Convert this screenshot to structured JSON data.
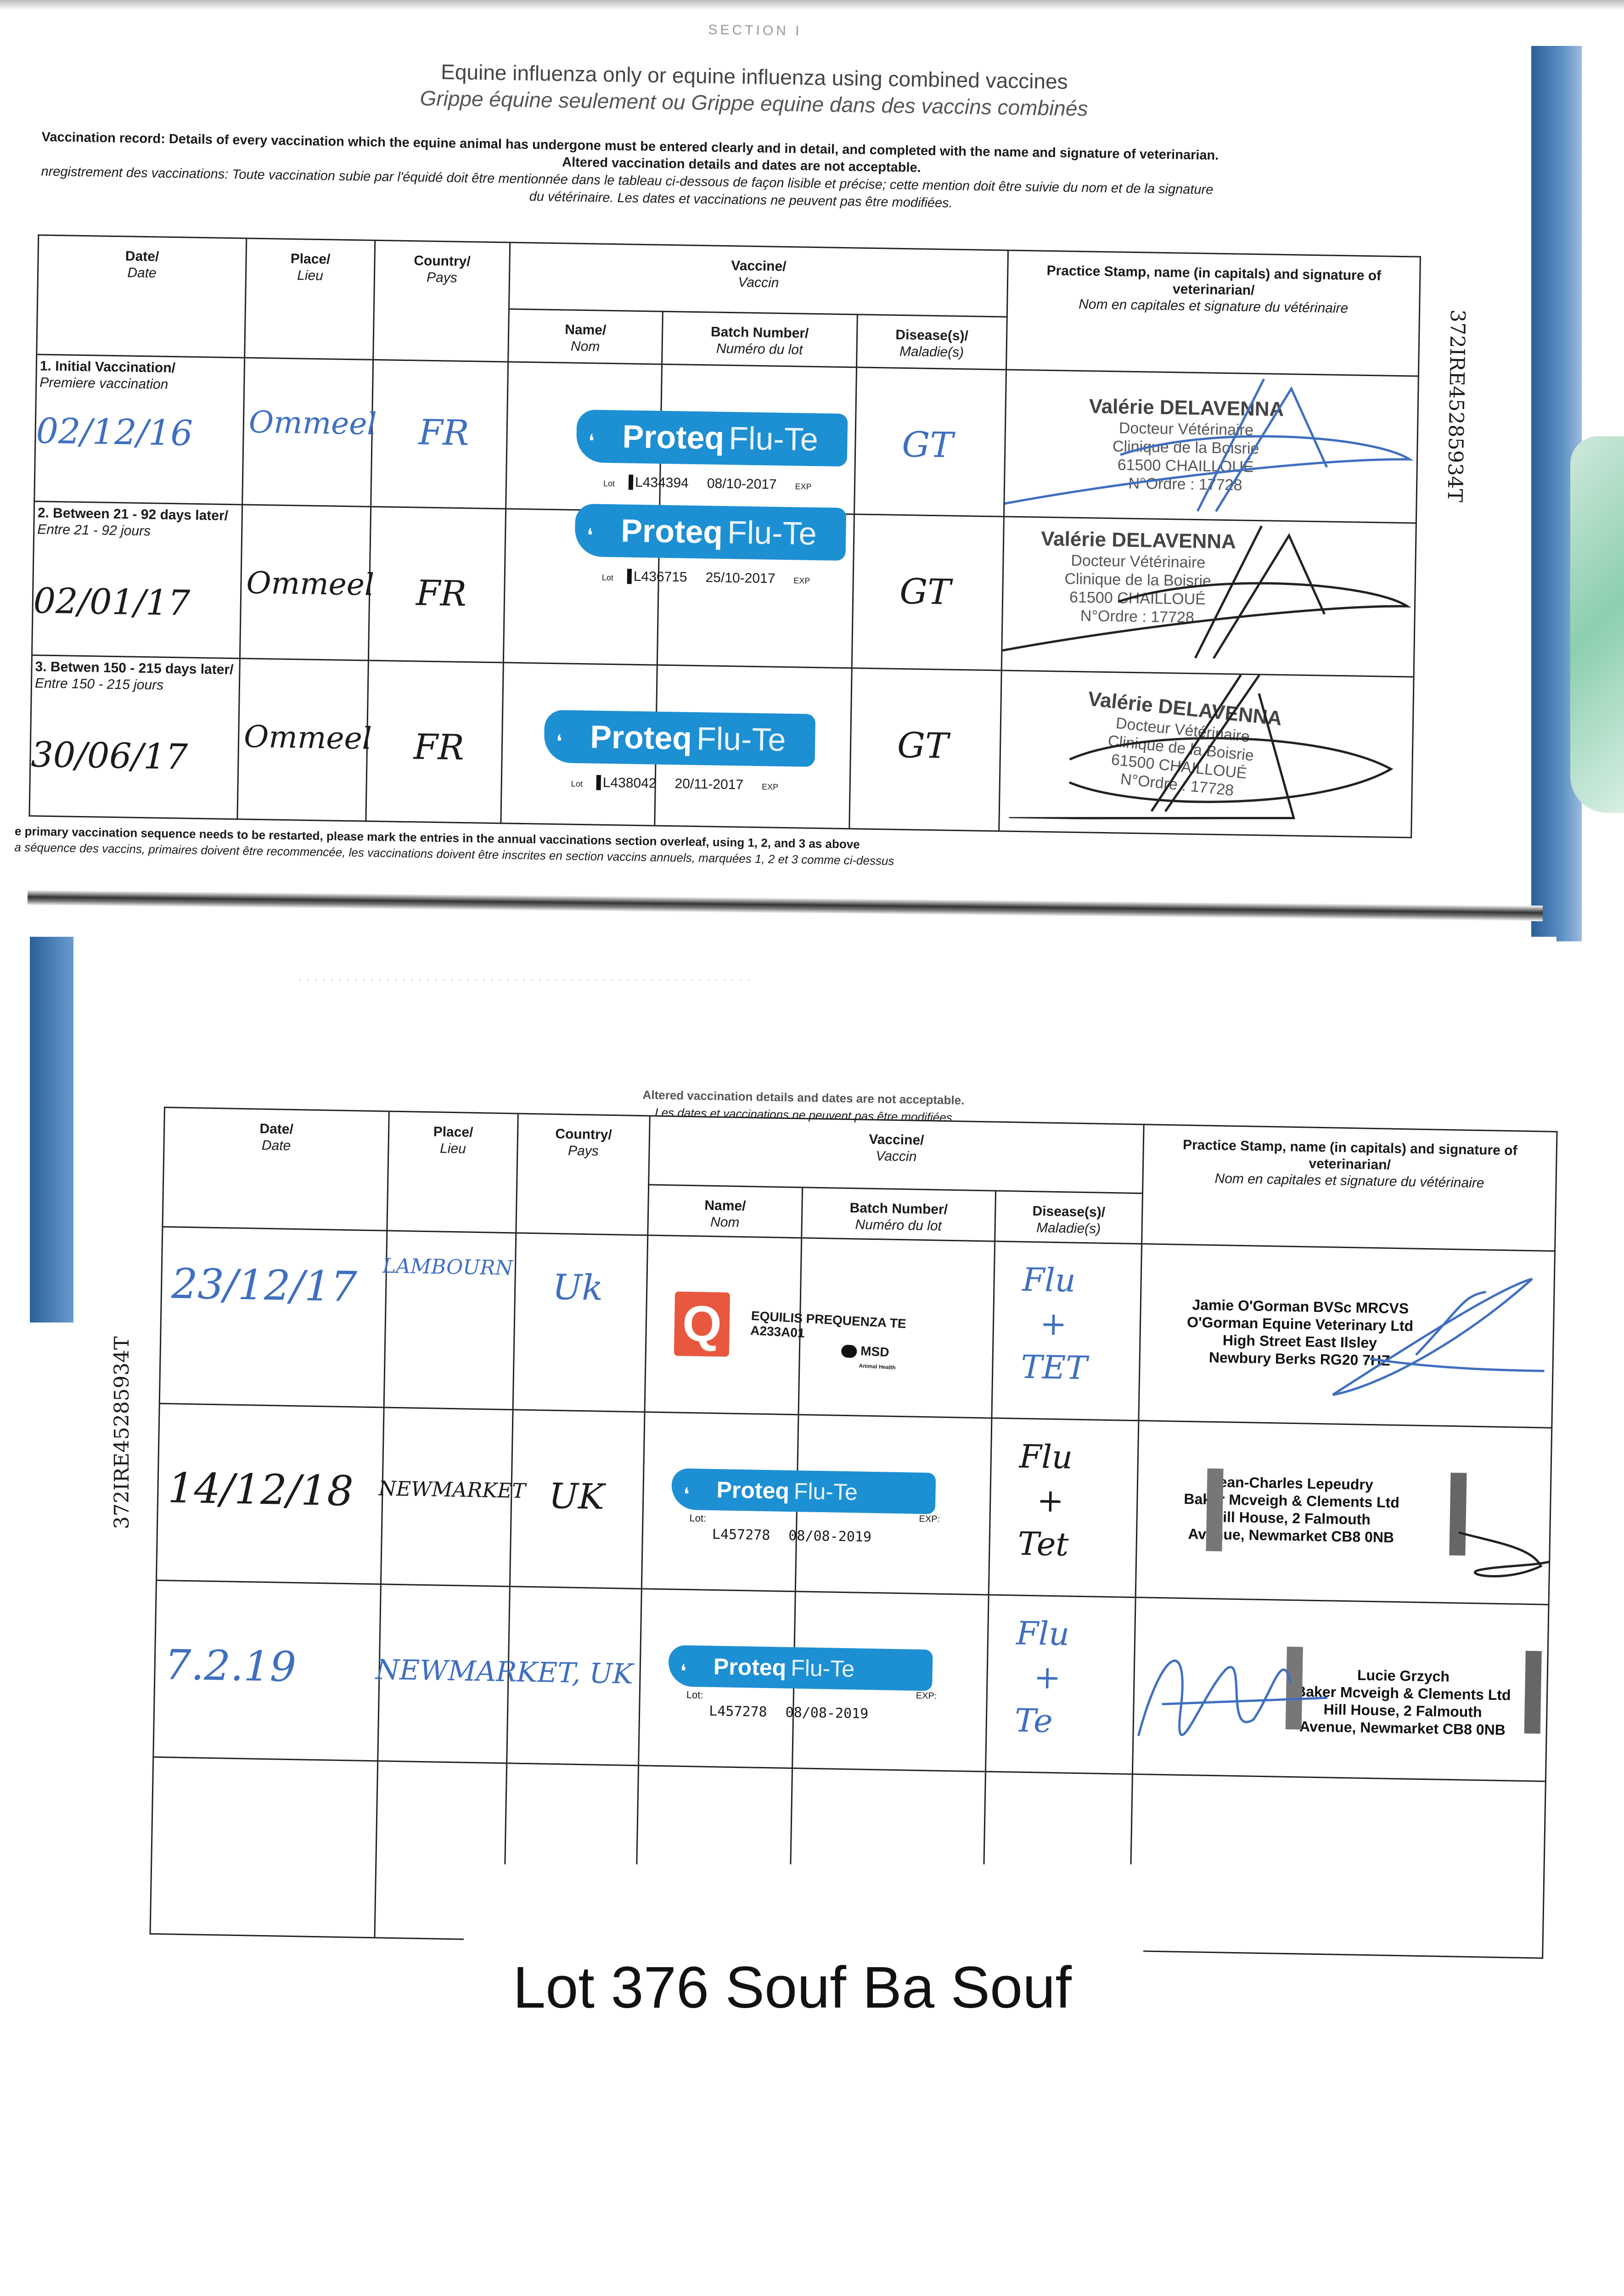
{
  "document": {
    "section_fragment": "SECTION I",
    "title_en": "Equine influenza only or equine influenza using combined vaccines",
    "title_fr": "Grippe équine seulement ou Grippe equine dans des vaccins combinés",
    "instructions_en": "Vaccination record: Details of every vaccination which the equine animal has undergone must be entered clearly and in detail, and completed with the name and signature of veterinarian.",
    "instructions_alt_en": "Altered vaccination details and dates are not acceptable.",
    "instructions_fr_1": "nregistrement des vaccinations: Toute vaccination subie par l'équidé doit être mentionnée dans le tableau ci-dessous de façon lisible et précise; cette mention doit être suivie du nom et de la signature",
    "instructions_fr_2": "du vétérinaire. Les dates et vaccinations ne peuvent pas être modifiées.",
    "horse_id": "372IRE45285934T",
    "footnote_en": "e primary vaccination sequence needs to be restarted, please mark the entries in the annual vaccinations section overleaf, using 1, 2, and 3 as above",
    "footnote_fr": "a séquence des vaccins, primaires doivent être recommencée, les vaccinations doivent être inscrites en section vaccins annuels, marquées 1, 2 et 3 comme ci-dessus",
    "bottom_note_en": "Altered vaccination details and dates are not acceptable.",
    "bottom_note_fr": "Les dates et vaccinations ne peuvent pas être modifiées",
    "lot_title": "Lot 376 Souf Ba Souf"
  },
  "columns": {
    "date_en": "Date/",
    "date_fr": "Date",
    "place_en": "Place/",
    "place_fr": "Lieu",
    "country_en": "Country/",
    "country_fr": "Pays",
    "vaccine_en": "Vaccine/",
    "vaccine_fr": "Vaccin",
    "name_en": "Name/",
    "name_fr": "Nom",
    "batch_en": "Batch Number/",
    "batch_fr": "Numéro du lot",
    "disease_en": "Disease(s)/",
    "disease_fr": "Maladie(s)",
    "stamp_en": "Practice Stamp, name (in capitals) and signature of veterinarian/",
    "stamp_fr": "Nom en capitales et signature du vétérinaire"
  },
  "primary_rows": [
    {
      "label_en": "1. Initial Vaccination/",
      "label_fr": "Premiere vaccination",
      "date": "02/12/16",
      "place": "Ommeel",
      "country": "FR",
      "vaccine": {
        "brand": "Proteq",
        "product": "Flu-Te",
        "lot_label": "Lot",
        "batch": "L434394",
        "expiry": "08/10-2017",
        "exp_label": "EXP"
      },
      "disease": "GT",
      "ink": "blue",
      "stamp": [
        "Valérie DELAVENNA",
        "Docteur Vétérinaire",
        "Clinique de la Boisrie",
        "61500 CHAILLOUÉ",
        "N°Ordre : 17728"
      ]
    },
    {
      "label_en": "2. Between 21 - 92 days later/",
      "label_fr": "Entre 21 - 92 jours",
      "date": "02/01/17",
      "place": "Ommeel",
      "country": "FR",
      "vaccine": {
        "brand": "Proteq",
        "product": "Flu-Te",
        "lot_label": "Lot",
        "batch": "L436715",
        "expiry": "25/10-2017",
        "exp_label": "EXP"
      },
      "disease": "GT",
      "ink": "black",
      "stamp": [
        "Valérie DELAVENNA",
        "Docteur Vétérinaire",
        "Clinique de la Boisrie",
        "61500 CHAILLOUÉ",
        "N°Ordre : 17728"
      ]
    },
    {
      "label_en": "3. Betwen 150 - 215 days later/",
      "label_fr": "Entre 150 - 215 jours",
      "date": "30/06/17",
      "place": "Ommeel",
      "country": "FR",
      "vaccine": {
        "brand": "Proteq",
        "product": "Flu-Te",
        "lot_label": "Lot",
        "batch": "L438042",
        "expiry": "20/11-2017",
        "exp_label": "EXP"
      },
      "disease": "GT",
      "ink": "black",
      "stamp": [
        "Valérie DELAVENNA",
        "Docteur Vétérinaire",
        "Clinique de la Boisrie",
        "61500 CHAILLOUÉ",
        "N°Ordre : 17728"
      ]
    }
  ],
  "booster_rows": [
    {
      "date": "23/12/17",
      "place": "LAMBOURN",
      "country": "Uk",
      "ink": "blue",
      "vaccine": {
        "type": "equilis",
        "name": "EQUILIS PREQUENZA TE",
        "batch": "A233A01",
        "maker": "MSD",
        "maker_sub": "Animal Health",
        "logo_letter": "Q"
      },
      "disease": [
        "Flu",
        "+",
        "TET"
      ],
      "stamp": [
        "Jamie O'Gorman BVSc MRCVS",
        "O'Gorman Equine Veterinary Ltd",
        "High Street East Ilsley",
        "Newbury Berks RG20 7HZ"
      ]
    },
    {
      "date": "14/12/18",
      "place": "NEWMARKET",
      "country": "UK",
      "ink": "black",
      "vaccine": {
        "type": "proteq",
        "brand": "Proteq",
        "product": "Flu-Te",
        "lot_label": "Lot:",
        "batch": "L457278",
        "expiry": "08/08-2019",
        "exp_label": "EXP:"
      },
      "disease": [
        "Flu",
        "+",
        "Tet"
      ],
      "stamp": [
        "Jean-Charles Lepeudry",
        "Baker Mcveigh & Clements Ltd",
        "Hill House, 2 Falmouth",
        "Avenue, Newmarket CB8 0NB"
      ]
    },
    {
      "date": "7.2.19",
      "place": "NEWMARKET, UK",
      "country": "",
      "ink": "blue",
      "vaccine": {
        "type": "proteq",
        "brand": "Proteq",
        "product": "Flu-Te",
        "lot_label": "Lot:",
        "batch": "L457278",
        "expiry": "08/08-2019",
        "exp_label": "EXP:"
      },
      "disease": [
        "Flu",
        "+",
        "Te"
      ],
      "stamp": [
        "Lucie Grzych",
        "Baker Mcveigh & Clements Ltd",
        "Hill House, 2 Falmouth",
        "Avenue, Newmarket CB8 0NB"
      ]
    }
  ],
  "colors": {
    "sticker_blue": "#1d8fd3",
    "ink_blue": "#3f6fbf",
    "equilis_red": "#e8583e",
    "folder_blue": "#2a5f98"
  }
}
